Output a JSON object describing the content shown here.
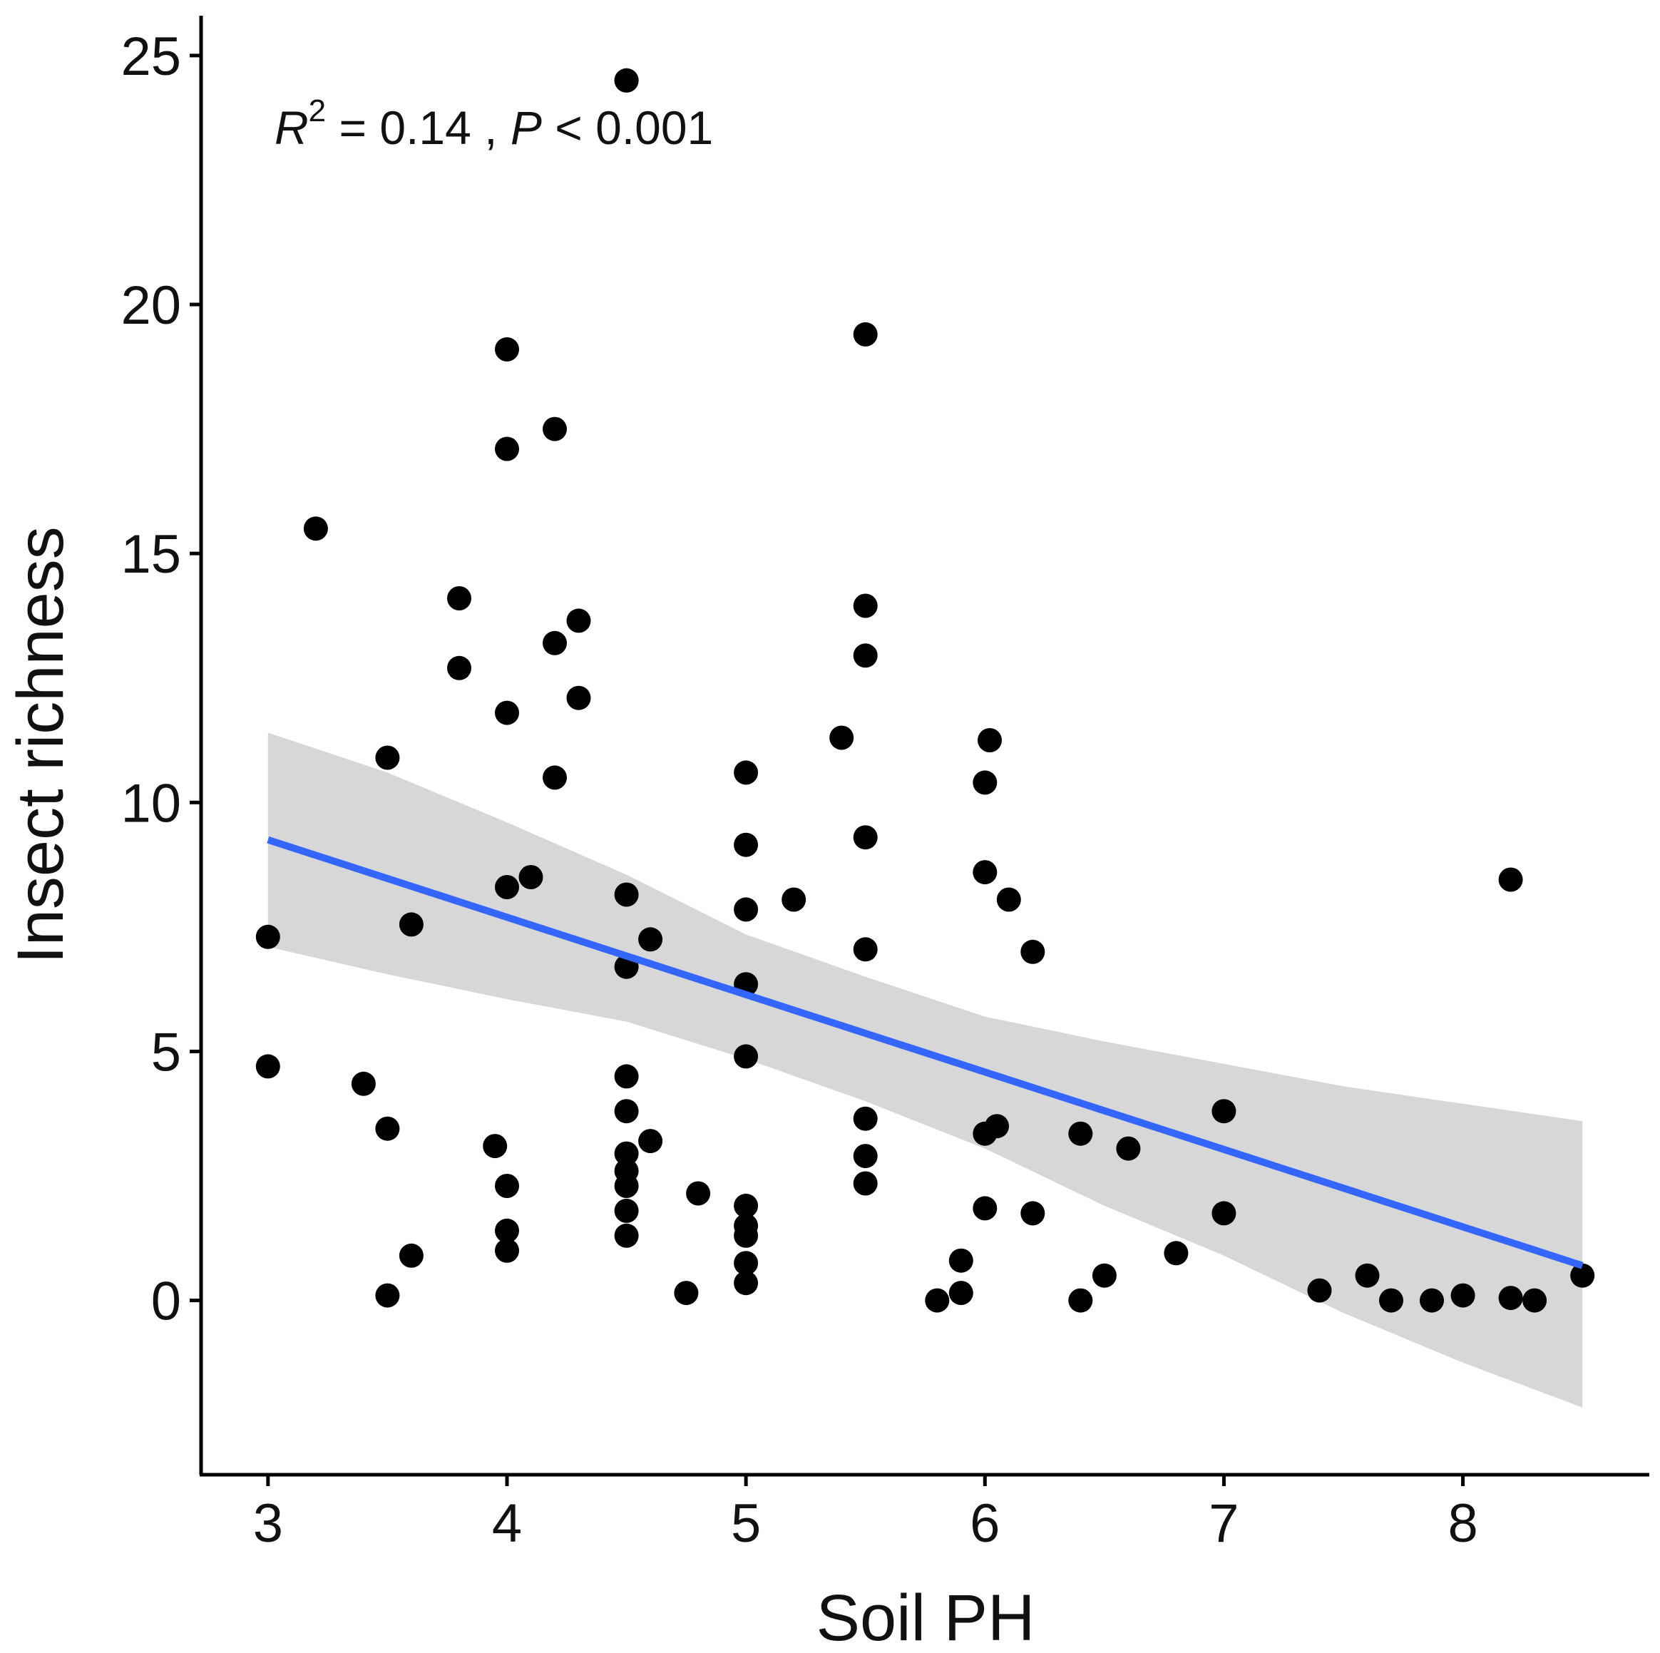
{
  "chart_data": {
    "type": "scatter",
    "title": "",
    "xlabel": "Soil PH",
    "ylabel": "Insect richness",
    "xlim": [
      2.72,
      8.78
    ],
    "ylim": [
      -3.5,
      25.8
    ],
    "xticks": [
      3,
      4,
      5,
      6,
      7,
      8
    ],
    "xtick_labels": [
      "3",
      "4",
      "5",
      "6",
      "7",
      "8"
    ],
    "yticks": [
      0,
      5,
      10,
      15,
      20,
      25
    ],
    "ytick_labels": [
      "0",
      "5",
      "10",
      "15",
      "20",
      "25"
    ],
    "annotation": {
      "r_symbol": "R",
      "r_exponent": "2",
      "r_value": " = 0.14 , ",
      "p_symbol": "P",
      "p_value": " < 0.001"
    },
    "colors": {
      "points": "#000000",
      "fit_line": "#3366ff",
      "confidence_band": "#d3d3d3",
      "axis": "#000000"
    },
    "series": [
      {
        "name": "observations",
        "x": [
          3.0,
          3.0,
          3.2,
          3.4,
          3.5,
          3.5,
          3.5,
          3.6,
          3.6,
          3.8,
          3.8,
          3.95,
          4.0,
          4.0,
          4.0,
          4.0,
          4.0,
          4.0,
          4.0,
          4.1,
          4.2,
          4.2,
          4.2,
          4.3,
          4.3,
          4.5,
          4.5,
          4.5,
          4.5,
          4.5,
          4.5,
          4.5,
          4.5,
          4.5,
          4.5,
          4.5,
          4.6,
          4.6,
          4.75,
          4.8,
          5.0,
          5.0,
          5.0,
          5.0,
          5.0,
          5.0,
          5.0,
          5.0,
          5.0,
          5.0,
          5.2,
          5.4,
          5.5,
          5.5,
          5.5,
          5.5,
          5.5,
          5.5,
          5.5,
          5.5,
          5.8,
          5.9,
          5.9,
          6.0,
          6.0,
          6.0,
          6.0,
          6.02,
          6.05,
          6.1,
          6.2,
          6.2,
          6.4,
          6.4,
          6.5,
          6.6,
          6.8,
          7.0,
          7.0,
          7.4,
          7.6,
          7.7,
          7.87,
          8.0,
          8.2,
          8.2,
          8.3,
          8.5
        ],
        "y": [
          7.3,
          4.7,
          15.5,
          4.35,
          10.9,
          3.45,
          0.1,
          7.55,
          0.9,
          14.1,
          12.7,
          3.1,
          19.1,
          17.1,
          11.8,
          8.3,
          2.3,
          1.4,
          1.0,
          8.5,
          17.5,
          13.2,
          10.5,
          13.65,
          12.1,
          24.5,
          8.15,
          6.7,
          4.5,
          3.8,
          2.95,
          2.6,
          2.3,
          1.8,
          1.3,
          24.5,
          7.25,
          3.2,
          0.15,
          2.15,
          10.6,
          9.15,
          7.85,
          6.35,
          4.9,
          1.9,
          1.5,
          1.3,
          0.75,
          0.35,
          8.05,
          11.3,
          19.4,
          13.95,
          12.95,
          9.3,
          7.05,
          3.65,
          2.9,
          2.35,
          0.0,
          0.8,
          0.15,
          10.4,
          8.6,
          3.35,
          1.85,
          11.25,
          3.5,
          8.05,
          7.0,
          1.75,
          3.35,
          0.0,
          0.5,
          3.05,
          0.95,
          3.8,
          1.75,
          0.2,
          0.5,
          0.0,
          0.0,
          0.1,
          8.45,
          0.05,
          0.0,
          0.5
        ]
      }
    ],
    "fit": {
      "type": "linear",
      "x": [
        3.0,
        8.5
      ],
      "y": [
        9.25,
        0.7
      ],
      "band_x": [
        3.0,
        3.5,
        4.0,
        4.5,
        5.0,
        5.5,
        6.0,
        6.5,
        7.0,
        7.5,
        8.0,
        8.5
      ],
      "band_lower": [
        7.1,
        6.55,
        6.05,
        5.6,
        4.85,
        4.0,
        3.05,
        1.9,
        0.9,
        -0.25,
        -1.25,
        -2.15
      ],
      "band_upper": [
        11.4,
        10.6,
        9.6,
        8.55,
        7.35,
        6.5,
        5.7,
        5.2,
        4.75,
        4.3,
        3.95,
        3.6
      ]
    }
  }
}
